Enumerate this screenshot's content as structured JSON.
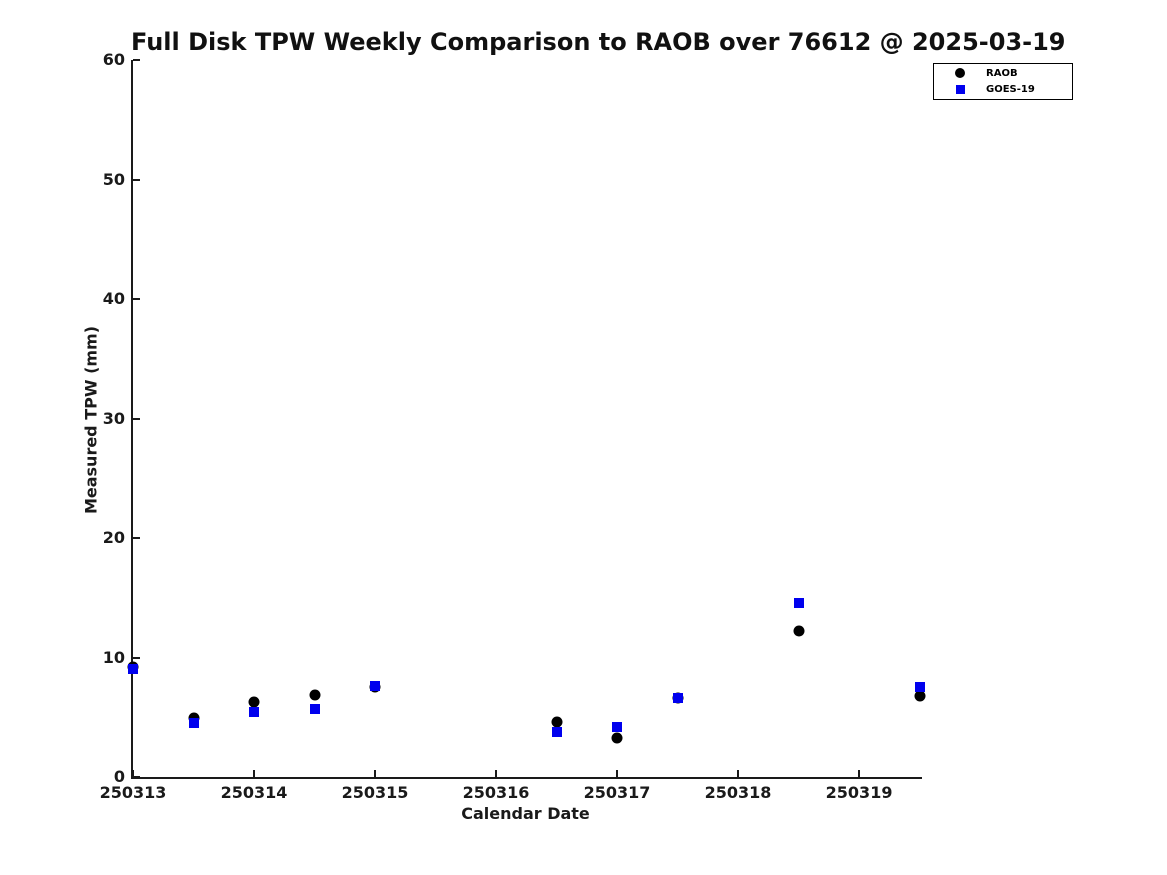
{
  "chart_data": {
    "type": "scatter",
    "title": "Full Disk TPW Weekly Comparison to RAOB over 76612 @ 2025-03-19",
    "xlabel": "Calendar Date",
    "ylabel": "Measured TPW (mm)",
    "xlim": [
      250313,
      250319.52
    ],
    "ylim": [
      0,
      60
    ],
    "xticks": [
      250313,
      250314,
      250315,
      250316,
      250317,
      250318,
      250319
    ],
    "yticks": [
      0,
      10,
      20,
      30,
      40,
      50,
      60
    ],
    "grid": false,
    "legend_position": "top-right",
    "series": [
      {
        "name": "RAOB",
        "marker": "circle",
        "color": "#000000",
        "x": [
          250313,
          250313.5,
          250314,
          250314.5,
          250315,
          250316.5,
          250317,
          250317.5,
          250318.5,
          250319.5
        ],
        "y": [
          9.2,
          4.9,
          6.3,
          6.9,
          7.5,
          4.6,
          3.3,
          6.6,
          12.2,
          6.8
        ]
      },
      {
        "name": "GOES-19",
        "marker": "square",
        "color": "#0000ee",
        "x": [
          250313,
          250313.5,
          250314,
          250314.5,
          250315,
          250316.5,
          250317,
          250317.5,
          250318.5,
          250319.5
        ],
        "y": [
          9.0,
          4.5,
          5.4,
          5.7,
          7.6,
          3.8,
          4.2,
          6.6,
          14.6,
          7.5
        ]
      }
    ]
  }
}
